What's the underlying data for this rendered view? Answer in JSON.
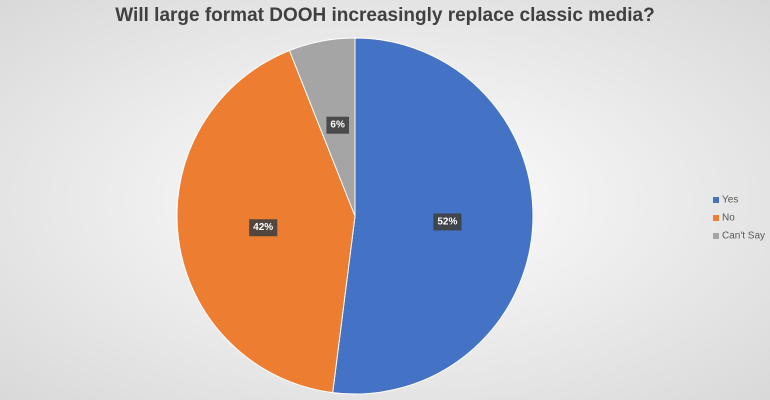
{
  "chart_data": {
    "type": "pie",
    "title": "Will large format DOOH increasingly replace classic media?",
    "categories": [
      "Yes",
      "No",
      "Can't Say"
    ],
    "values": [
      52,
      42,
      6
    ],
    "value_labels": [
      "52%",
      "42%",
      "6%"
    ],
    "colors": [
      "#4472c4",
      "#ed7d31",
      "#a5a5a5"
    ],
    "legend": "right"
  }
}
